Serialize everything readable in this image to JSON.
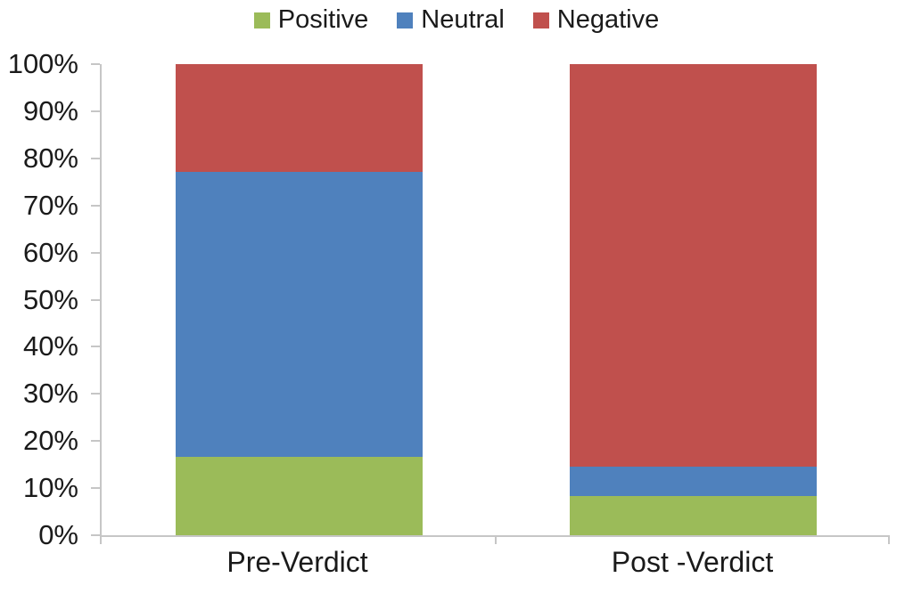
{
  "chart_data": {
    "type": "bar",
    "stacked": true,
    "stacked_mode": "100%",
    "title": "",
    "xlabel": "",
    "ylabel": "",
    "categories": [
      "Pre-Verdict",
      "Post -Verdict"
    ],
    "series": [
      {
        "name": "Positive",
        "color": "#9BBB59",
        "values": [
          16.6,
          8.3
        ]
      },
      {
        "name": "Neutral",
        "color": "#4F81BD",
        "values": [
          60.6,
          6.2
        ]
      },
      {
        "name": "Negative",
        "color": "#C0504D",
        "values": [
          22.8,
          85.5
        ]
      }
    ],
    "units": "%",
    "ylim": [
      0,
      100
    ],
    "yticks": [
      "0%",
      "10%",
      "20%",
      "30%",
      "40%",
      "50%",
      "60%",
      "70%",
      "80%",
      "90%",
      "100%"
    ],
    "legend_position": "top",
    "grid": false,
    "axis_color": "#C6C6C6",
    "text_color": "#1A1A1A",
    "background_color": "#FFFFFF"
  }
}
